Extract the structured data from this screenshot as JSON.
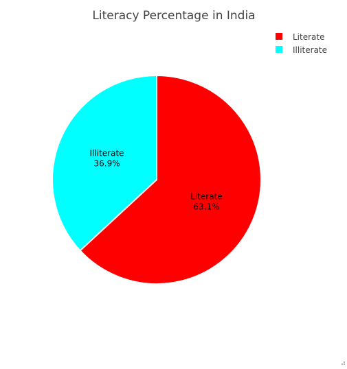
{
  "chart_data": {
    "type": "pie",
    "title": "Literacy Percentage in India",
    "categories": [
      "Literate",
      "Illiterate"
    ],
    "values": [
      63.1,
      36.9
    ],
    "labels": [
      "63.1%",
      "36.9%"
    ],
    "colors": [
      "#ff0000",
      "#00ffff"
    ],
    "legend_position": "top-right",
    "sort_direction": "clockwise"
  }
}
